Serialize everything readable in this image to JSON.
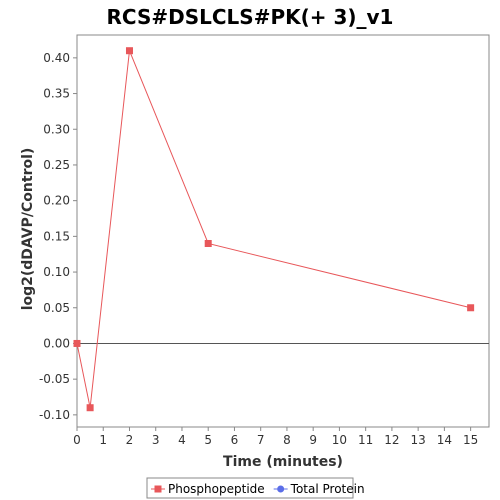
{
  "chart_data": {
    "type": "line",
    "title": "RCS#DSLCLS#PK(+ 3)_v1",
    "xlabel": "Time (minutes)",
    "ylabel": "log2(dDAVP/Control)",
    "xlim": [
      0,
      15.7
    ],
    "ylim": [
      -0.117,
      0.432
    ],
    "x_ticks": [
      0,
      1,
      2,
      3,
      4,
      5,
      6,
      7,
      8,
      9,
      10,
      11,
      12,
      13,
      14,
      15
    ],
    "y_ticks": [
      -0.1,
      -0.05,
      0.0,
      0.05,
      0.1,
      0.15,
      0.2,
      0.25,
      0.3,
      0.35,
      0.4
    ],
    "y_tick_labels": [
      "-0.10",
      "-0.05",
      "0.00",
      "0.05",
      "0.10",
      "0.15",
      "0.20",
      "0.25",
      "0.30",
      "0.35",
      "0.40"
    ],
    "grid": false,
    "zero_line": true,
    "legend_position": "bottom",
    "series": [
      {
        "name": "Phosphopeptide",
        "color": "#e8575a",
        "marker": "square",
        "x": [
          0,
          0.5,
          2,
          5,
          15
        ],
        "y": [
          0.0,
          -0.09,
          0.41,
          0.14,
          0.05
        ]
      },
      {
        "name": "Total Protein",
        "color": "#5b6ee8",
        "marker": "circle",
        "x": [],
        "y": []
      }
    ]
  }
}
